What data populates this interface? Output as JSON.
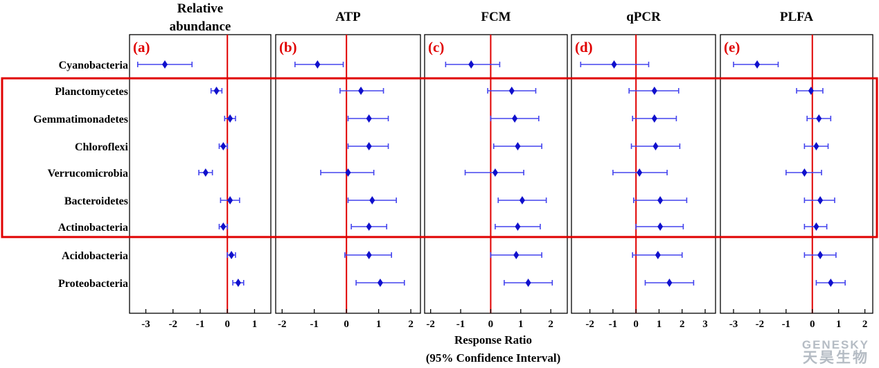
{
  "chart_data": {
    "type": "forest",
    "categories": [
      "Cyanobacteria",
      "Planctomycetes",
      "Gemmatimonadetes",
      "Chloroflexi",
      "Verrucomicrobia",
      "Bacteroidetes",
      "Actinobacteria",
      "Acidobacteria",
      "Proteobacteria"
    ],
    "highlight": {
      "from": "Planctomycetes",
      "to": "Actinobacteria",
      "color": "#e00000"
    },
    "xlabel_line1": "Response Ratio",
    "xlabel_line2": "(95% Confidence Interval)",
    "zero_line_color": "#e00000",
    "marker_color": "#1010cc",
    "ci_color": "#4444ee",
    "panels": [
      {
        "label": "(a)",
        "title_lines": [
          "Relative",
          "abundance"
        ],
        "xlim": [
          -3.6,
          1.6
        ],
        "ticks": [
          -3,
          -2,
          -1,
          0,
          1
        ],
        "points": [
          {
            "mean": -2.3,
            "low": -3.3,
            "high": -1.3
          },
          {
            "mean": -0.4,
            "low": -0.6,
            "high": -0.2
          },
          {
            "mean": 0.1,
            "low": -0.1,
            "high": 0.3
          },
          {
            "mean": -0.15,
            "low": -0.3,
            "high": 0.0
          },
          {
            "mean": -0.8,
            "low": -1.05,
            "high": -0.55
          },
          {
            "mean": 0.1,
            "low": -0.25,
            "high": 0.45
          },
          {
            "mean": -0.15,
            "low": -0.3,
            "high": 0.0
          },
          {
            "mean": 0.15,
            "low": 0.0,
            "high": 0.3
          },
          {
            "mean": 0.4,
            "low": 0.2,
            "high": 0.6
          }
        ]
      },
      {
        "label": "(b)",
        "title_lines": [
          "ATP"
        ],
        "xlim": [
          -2.2,
          2.3
        ],
        "ticks": [
          -2,
          -1,
          0,
          1,
          2
        ],
        "points": [
          {
            "mean": -0.9,
            "low": -1.6,
            "high": -0.1
          },
          {
            "mean": 0.45,
            "low": -0.2,
            "high": 1.15
          },
          {
            "mean": 0.7,
            "low": 0.05,
            "high": 1.3
          },
          {
            "mean": 0.7,
            "low": 0.05,
            "high": 1.3
          },
          {
            "mean": 0.05,
            "low": -0.8,
            "high": 0.85
          },
          {
            "mean": 0.8,
            "low": 0.05,
            "high": 1.55
          },
          {
            "mean": 0.7,
            "low": 0.15,
            "high": 1.25
          },
          {
            "mean": 0.7,
            "low": -0.05,
            "high": 1.4
          },
          {
            "mean": 1.05,
            "low": 0.3,
            "high": 1.8
          }
        ]
      },
      {
        "label": "(c)",
        "title_lines": [
          "FCM"
        ],
        "xlim": [
          -2.2,
          2.55
        ],
        "ticks": [
          -2,
          -1,
          0,
          1,
          2
        ],
        "points": [
          {
            "mean": -0.65,
            "low": -1.5,
            "high": 0.3
          },
          {
            "mean": 0.7,
            "low": -0.1,
            "high": 1.5
          },
          {
            "mean": 0.8,
            "low": 0.0,
            "high": 1.6
          },
          {
            "mean": 0.9,
            "low": 0.1,
            "high": 1.7
          },
          {
            "mean": 0.15,
            "low": -0.85,
            "high": 1.1
          },
          {
            "mean": 1.05,
            "low": 0.25,
            "high": 1.85
          },
          {
            "mean": 0.9,
            "low": 0.15,
            "high": 1.65
          },
          {
            "mean": 0.85,
            "low": 0.0,
            "high": 1.7
          },
          {
            "mean": 1.25,
            "low": 0.45,
            "high": 2.05
          }
        ]
      },
      {
        "label": "(d)",
        "title_lines": [
          "qPCR"
        ],
        "xlim": [
          -2.8,
          3.45
        ],
        "ticks": [
          -2,
          -1,
          0,
          1,
          2,
          3
        ],
        "points": [
          {
            "mean": -0.95,
            "low": -2.4,
            "high": 0.55
          },
          {
            "mean": 0.8,
            "low": -0.3,
            "high": 1.85
          },
          {
            "mean": 0.8,
            "low": -0.15,
            "high": 1.75
          },
          {
            "mean": 0.85,
            "low": -0.2,
            "high": 1.9
          },
          {
            "mean": 0.15,
            "low": -1.0,
            "high": 1.35
          },
          {
            "mean": 1.05,
            "low": -0.1,
            "high": 2.2
          },
          {
            "mean": 1.05,
            "low": 0.0,
            "high": 2.05
          },
          {
            "mean": 0.95,
            "low": -0.15,
            "high": 2.0
          },
          {
            "mean": 1.45,
            "low": 0.4,
            "high": 2.5
          }
        ]
      },
      {
        "label": "(e)",
        "title_lines": [
          "PLFA"
        ],
        "xlim": [
          -3.5,
          2.3
        ],
        "ticks": [
          -3,
          -2,
          -1,
          0,
          1,
          2
        ],
        "points": [
          {
            "mean": -2.1,
            "low": -3.0,
            "high": -1.3
          },
          {
            "mean": -0.05,
            "low": -0.6,
            "high": 0.4
          },
          {
            "mean": 0.25,
            "low": -0.2,
            "high": 0.7
          },
          {
            "mean": 0.15,
            "low": -0.3,
            "high": 0.6
          },
          {
            "mean": -0.3,
            "low": -1.0,
            "high": 0.35
          },
          {
            "mean": 0.3,
            "low": -0.3,
            "high": 0.85
          },
          {
            "mean": 0.15,
            "low": -0.3,
            "high": 0.55
          },
          {
            "mean": 0.3,
            "low": -0.3,
            "high": 0.9
          },
          {
            "mean": 0.7,
            "low": 0.15,
            "high": 1.25
          }
        ]
      }
    ]
  },
  "watermark": {
    "line1": "GENESKY",
    "line2": "天昊生物"
  }
}
